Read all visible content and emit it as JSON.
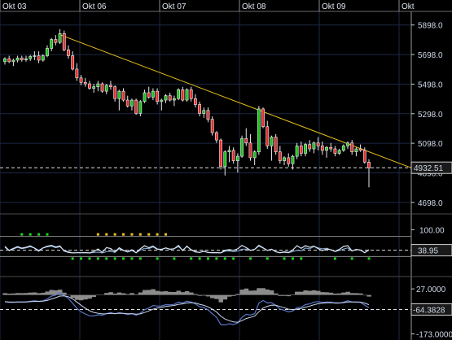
{
  "chart_data": [
    {
      "type": "candlestick",
      "days": [
        "Okt 03",
        "Okt 06",
        "Okt 07",
        "Okt 08",
        "Okt 09",
        "Okt"
      ],
      "yticks": [
        4698.0,
        4898.0,
        5098.0,
        5298.0,
        5498.0,
        5698.0,
        5898.0
      ],
      "ylim": [
        4620,
        5990
      ],
      "last_price": "4932.51",
      "last_value": 4932.51,
      "trendline": {
        "start": [
          0,
          5832
        ],
        "end": [
          120,
          4932
        ]
      },
      "candles": [
        [
          5650,
          5680,
          5630,
          5670
        ],
        [
          5670,
          5690,
          5640,
          5650
        ],
        [
          5650,
          5670,
          5620,
          5660
        ],
        [
          5660,
          5690,
          5645,
          5675
        ],
        [
          5675,
          5690,
          5650,
          5662
        ],
        [
          5662,
          5690,
          5650,
          5670
        ],
        [
          5670,
          5695,
          5655,
          5685
        ],
        [
          5685,
          5720,
          5660,
          5690
        ],
        [
          5690,
          5720,
          5640,
          5660
        ],
        [
          5660,
          5700,
          5650,
          5690
        ],
        [
          5690,
          5760,
          5680,
          5740
        ],
        [
          5740,
          5810,
          5720,
          5800
        ],
        [
          5800,
          5830,
          5760,
          5780
        ],
        [
          5780,
          5870,
          5770,
          5840
        ],
        [
          5840,
          5860,
          5720,
          5730
        ],
        [
          5730,
          5760,
          5670,
          5690
        ],
        [
          5690,
          5720,
          5590,
          5600
        ],
        [
          5600,
          5640,
          5520,
          5540
        ],
        [
          5540,
          5560,
          5490,
          5510
        ],
        [
          5510,
          5540,
          5480,
          5500
        ],
        [
          5500,
          5520,
          5460,
          5470
        ],
        [
          5470,
          5500,
          5440,
          5480
        ],
        [
          5480,
          5520,
          5450,
          5500
        ],
        [
          5500,
          5510,
          5440,
          5450
        ],
        [
          5450,
          5500,
          5430,
          5490
        ],
        [
          5490,
          5520,
          5460,
          5480
        ],
        [
          5480,
          5490,
          5380,
          5400
        ],
        [
          5400,
          5460,
          5320,
          5450
        ],
        [
          5450,
          5470,
          5380,
          5390
        ],
        [
          5390,
          5420,
          5340,
          5350
        ],
        [
          5350,
          5400,
          5320,
          5390
        ],
        [
          5390,
          5400,
          5290,
          5300
        ],
        [
          5300,
          5390,
          5280,
          5380
        ],
        [
          5380,
          5460,
          5370,
          5440
        ],
        [
          5440,
          5480,
          5400,
          5410
        ],
        [
          5410,
          5470,
          5390,
          5450
        ],
        [
          5450,
          5470,
          5360,
          5380
        ],
        [
          5380,
          5400,
          5320,
          5390
        ],
        [
          5390,
          5430,
          5370,
          5420
        ],
        [
          5420,
          5440,
          5380,
          5390
        ],
        [
          5390,
          5420,
          5350,
          5400
        ],
        [
          5400,
          5470,
          5390,
          5460
        ],
        [
          5460,
          5480,
          5380,
          5390
        ],
        [
          5390,
          5470,
          5380,
          5460
        ],
        [
          5460,
          5480,
          5380,
          5400
        ],
        [
          5400,
          5430,
          5340,
          5360
        ],
        [
          5360,
          5380,
          5280,
          5300
        ],
        [
          5300,
          5340,
          5270,
          5320
        ],
        [
          5320,
          5340,
          5240,
          5260
        ],
        [
          5260,
          5280,
          5150,
          5170
        ],
        [
          5170,
          5180,
          5100,
          5120
        ],
        [
          5120,
          5130,
          4920,
          4940
        ],
        [
          4940,
          5050,
          4880,
          5040
        ],
        [
          5040,
          5080,
          4970,
          5050
        ],
        [
          5050,
          5070,
          4960,
          4980
        ],
        [
          4980,
          5030,
          4900,
          5010
        ],
        [
          5010,
          5150,
          5000,
          5130
        ],
        [
          5130,
          5200,
          5080,
          5100
        ],
        [
          5100,
          5160,
          4980,
          5000
        ],
        [
          5000,
          5050,
          4950,
          5040
        ],
        [
          5040,
          5350,
          5020,
          5330
        ],
        [
          5330,
          5340,
          5200,
          5210
        ],
        [
          5210,
          5250,
          5060,
          5080
        ],
        [
          5080,
          5150,
          4980,
          5140
        ],
        [
          5140,
          5160,
          5020,
          5040
        ],
        [
          5040,
          5080,
          4960,
          4980
        ],
        [
          4980,
          5010,
          4950,
          5000
        ],
        [
          5000,
          5030,
          4940,
          4960
        ],
        [
          4960,
          5020,
          4920,
          5010
        ],
        [
          5010,
          5100,
          4990,
          5080
        ],
        [
          5080,
          5110,
          5010,
          5030
        ],
        [
          5030,
          5100,
          5010,
          5090
        ],
        [
          5090,
          5120,
          5040,
          5060
        ],
        [
          5060,
          5110,
          5030,
          5100
        ],
        [
          5100,
          5140,
          5050,
          5080
        ],
        [
          5080,
          5110,
          5020,
          5050
        ],
        [
          5050,
          5080,
          5000,
          5070
        ],
        [
          5070,
          5100,
          5040,
          5060
        ],
        [
          5060,
          5080,
          5010,
          5030
        ],
        [
          5030,
          5060,
          5020,
          5050
        ],
        [
          5050,
          5090,
          5040,
          5080
        ],
        [
          5080,
          5110,
          5060,
          5100
        ],
        [
          5100,
          5120,
          5020,
          5040
        ],
        [
          5040,
          5070,
          5010,
          5060
        ],
        [
          5060,
          5090,
          5040,
          5050
        ],
        [
          5050,
          5070,
          4960,
          4970
        ],
        [
          4970,
          4990,
          4800,
          4932
        ]
      ]
    },
    {
      "type": "line",
      "yticks": [
        100.0
      ],
      "ylim": [
        -25,
        130
      ],
      "reference_lines": [
        80,
        20
      ],
      "last_label": "38.95",
      "last_value": 38.95
    },
    {
      "type": "area",
      "yticks": [
        27.0,
        -173.0
      ],
      "tick_labels": [
        "27.0000",
        "-173.0000"
      ],
      "ylim": [
        -200,
        60
      ],
      "last_label": "-64.3828",
      "last_value": -64.3828,
      "zero_line": 0
    }
  ],
  "colors": {
    "bull": "#1cbf1c",
    "bear": "#e23030",
    "trend": "#e8c21a",
    "osc_line": "#d8e4f4",
    "osc_line2": "#8fb0d8",
    "dot_up": "#1ed41e",
    "dot_down": "#e8c21a",
    "hist": "#8c8c8c",
    "macd_line": "#5a78c8",
    "signal_line": "#c8d4f0",
    "grid": "#1c2844",
    "axis": "#c8c8c8"
  }
}
